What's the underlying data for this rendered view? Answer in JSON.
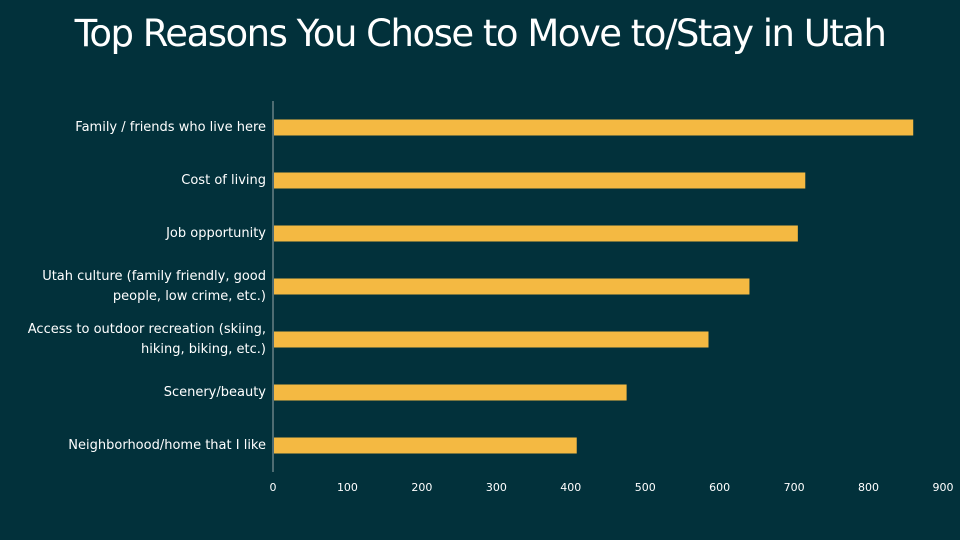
{
  "title": "Top Reasons You Chose to Move to/Stay in Utah",
  "colors": {
    "background": "#02313b",
    "bar": "#f4b942",
    "text": "#ffffff",
    "axis": "#9aa6a8"
  },
  "chart_data": {
    "type": "bar",
    "orientation": "horizontal",
    "title": "Top Reasons You Chose to Move to/Stay in Utah",
    "xlabel": "",
    "ylabel": "",
    "categories": [
      "Family / friends who live here",
      "Cost of living",
      "Job opportunity",
      "Utah culture (family friendly, good people, low crime, etc.)",
      "Access to outdoor recreation (skiing, hiking, biking, etc.)",
      "Scenery/beauty",
      "Neighborhood/home that I like"
    ],
    "values": [
      860,
      715,
      705,
      640,
      585,
      475,
      408
    ],
    "xlim": [
      0,
      900
    ],
    "xticks": [
      "0",
      "100",
      "200",
      "300",
      "400",
      "500",
      "600",
      "700",
      "800",
      "900"
    ],
    "grid": false,
    "legend": "none"
  }
}
